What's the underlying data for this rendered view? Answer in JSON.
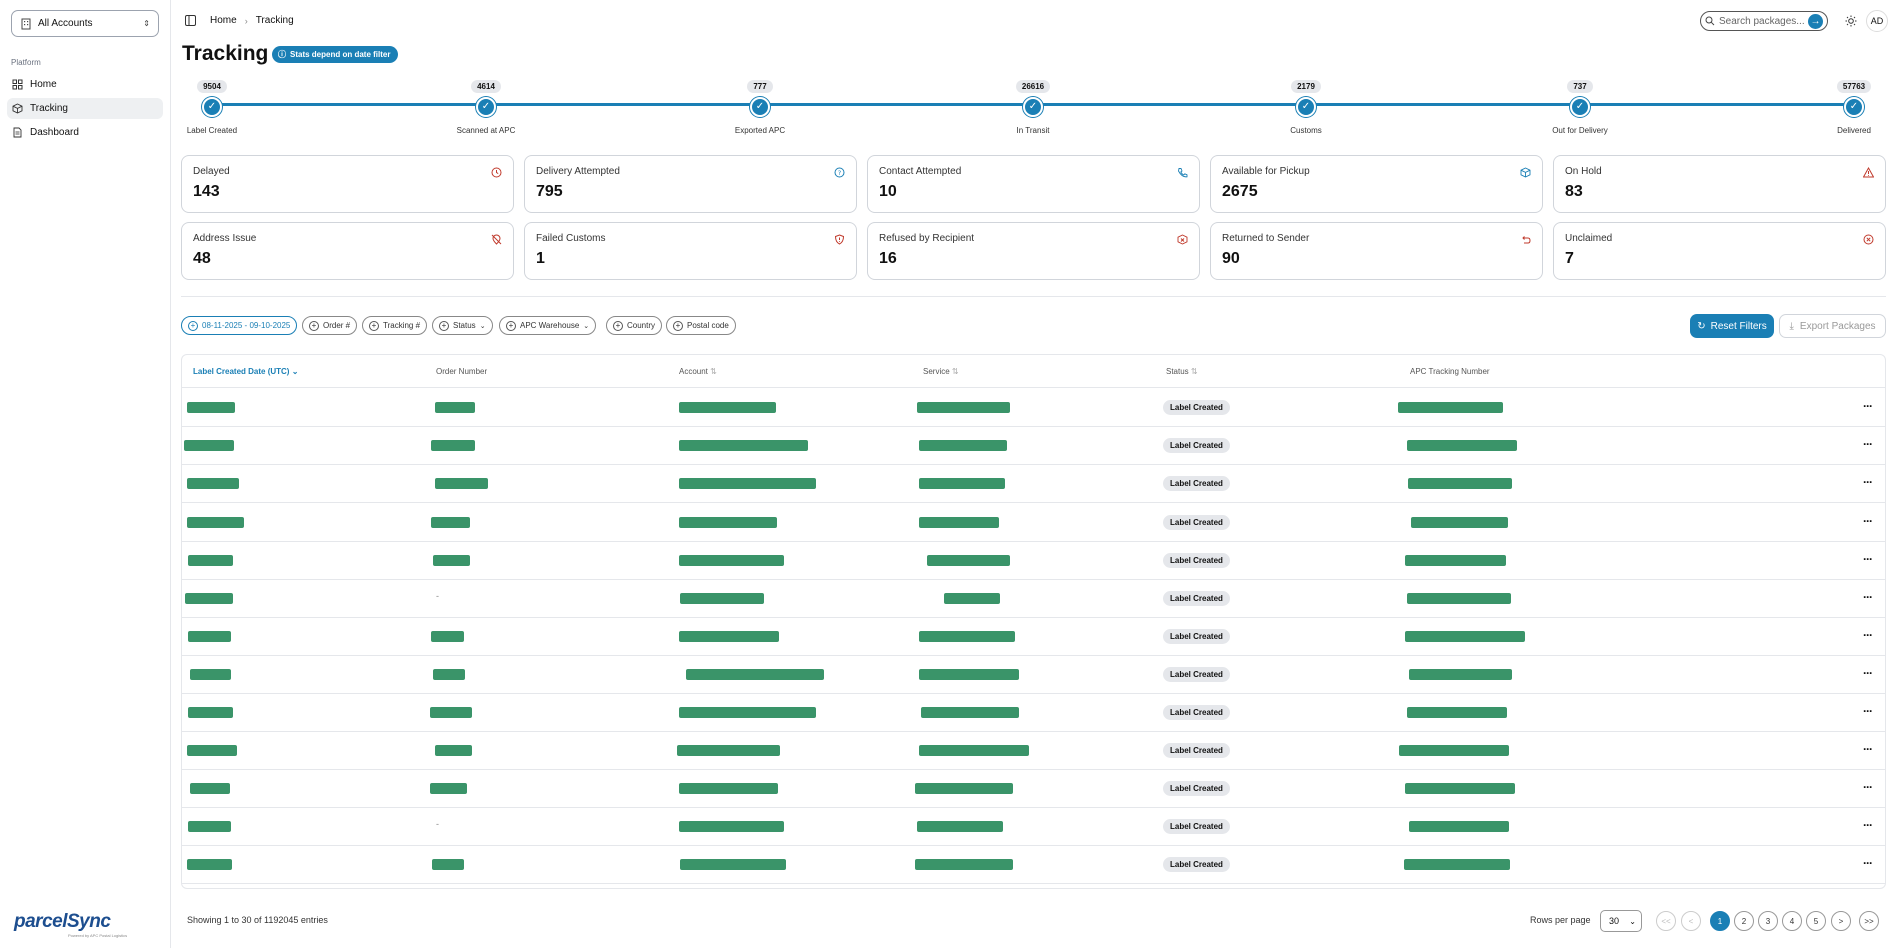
{
  "sidebar": {
    "account_select": "All Accounts",
    "section_label": "Platform",
    "items": [
      {
        "label": "Home",
        "icon": "grid-icon"
      },
      {
        "label": "Tracking",
        "icon": "package-icon"
      },
      {
        "label": "Dashboard",
        "icon": "file-icon"
      }
    ],
    "logo_main": "parcel",
    "logo_accent": "Sync",
    "logo_tagline": "Powered by APC Postal Logistics"
  },
  "topbar": {
    "breadcrumb": [
      "Home",
      "Tracking"
    ],
    "search_placeholder": "Search packages...",
    "avatar": "AD"
  },
  "page": {
    "title": "Tracking",
    "badge": "Stats depend on date filter"
  },
  "stages": [
    {
      "count": "9504",
      "label": "Label Created"
    },
    {
      "count": "4614",
      "label": "Scanned at APC"
    },
    {
      "count": "777",
      "label": "Exported APC"
    },
    {
      "count": "26616",
      "label": "In Transit"
    },
    {
      "count": "2179",
      "label": "Customs"
    },
    {
      "count": "737",
      "label": "Out for Delivery"
    },
    {
      "count": "57763",
      "label": "Delivered"
    }
  ],
  "cards": [
    {
      "title": "Delayed",
      "value": "143",
      "icon": "clock-icon",
      "color": "#c0392b"
    },
    {
      "title": "Delivery Attempted",
      "value": "795",
      "icon": "help-circle-icon",
      "color": "#1a7fb5"
    },
    {
      "title": "Contact Attempted",
      "value": "10",
      "icon": "phone-icon",
      "color": "#1a7fb5"
    },
    {
      "title": "Available for Pickup",
      "value": "2675",
      "icon": "box-icon",
      "color": "#1a7fb5"
    },
    {
      "title": "On Hold",
      "value": "83",
      "icon": "alert-triangle-icon",
      "color": "#c0392b"
    },
    {
      "title": "Address Issue",
      "value": "48",
      "icon": "map-pin-off-icon",
      "color": "#c0392b"
    },
    {
      "title": "Failed Customs",
      "value": "1",
      "icon": "shield-alert-icon",
      "color": "#c0392b"
    },
    {
      "title": "Refused by Recipient",
      "value": "16",
      "icon": "package-x-icon",
      "color": "#c0392b"
    },
    {
      "title": "Returned to Sender",
      "value": "90",
      "icon": "undo-icon",
      "color": "#c0392b"
    },
    {
      "title": "Unclaimed",
      "value": "7",
      "icon": "x-circle-icon",
      "color": "#c0392b"
    }
  ],
  "filters": [
    {
      "label": "08-11-2025 - 09-10-2025",
      "dropdown": false
    },
    {
      "label": "Order #",
      "dropdown": false
    },
    {
      "label": "Tracking #",
      "dropdown": false
    },
    {
      "label": "Status",
      "dropdown": true
    },
    {
      "label": "APC Warehouse",
      "dropdown": true
    },
    {
      "label": "Country",
      "dropdown": false
    },
    {
      "label": "Postal code",
      "dropdown": false
    }
  ],
  "actions": {
    "reset": "Reset Filters",
    "export": "Export Packages"
  },
  "table": {
    "columns": [
      "Label Created Date (UTC)",
      "Order Number",
      "Account",
      "Service",
      "Status",
      "APC Tracking Number"
    ],
    "rows": [
      {
        "status": "Label Created",
        "order": ""
      },
      {
        "status": "Label Created",
        "order": ""
      },
      {
        "status": "Label Created",
        "order": ""
      },
      {
        "status": "Label Created",
        "order": ""
      },
      {
        "status": "Label Created",
        "order": ""
      },
      {
        "status": "Label Created",
        "order": "-"
      },
      {
        "status": "Label Created",
        "order": ""
      },
      {
        "status": "Label Created",
        "order": ""
      },
      {
        "status": "Label Created",
        "order": ""
      },
      {
        "status": "Label Created",
        "order": ""
      },
      {
        "status": "Label Created",
        "order": ""
      },
      {
        "status": "Label Created",
        "order": "-"
      },
      {
        "status": "Label Created",
        "order": ""
      }
    ],
    "row_menu": "···"
  },
  "footer": {
    "showing": "Showing 1 to 30 of 1192045 entries",
    "rows_per_page_label": "Rows per page",
    "rows_per_page": "30",
    "pager": [
      "<<",
      "<",
      "1",
      "2",
      "3",
      "4",
      "5",
      ">",
      ">>"
    ],
    "current_page": "1"
  },
  "colors": {
    "accent": "#1a7fb5",
    "redacted": "#3a9469"
  }
}
